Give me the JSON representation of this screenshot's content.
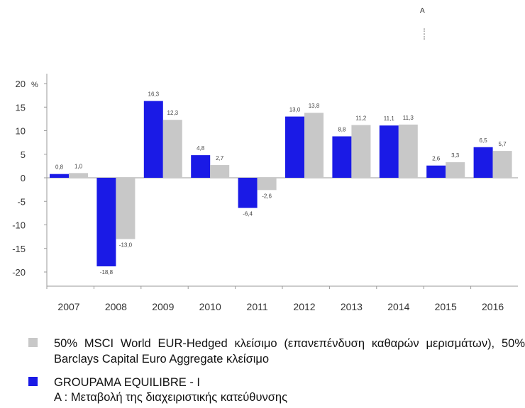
{
  "chart_data": {
    "type": "bar",
    "unit_label": "%",
    "categories": [
      "2007",
      "2008",
      "2009",
      "2010",
      "2011",
      "2012",
      "2013",
      "2014",
      "2015",
      "2016"
    ],
    "y_ticks": [
      "20",
      "15",
      "10",
      "5",
      "0",
      "-5",
      "-10",
      "-15",
      "-20"
    ],
    "ylim": [
      -22,
      22
    ],
    "series": [
      {
        "name": "GROUPAMA EQUILIBRE  - I",
        "color": "#1a1ae6",
        "values": [
          0.8,
          -18.8,
          16.3,
          4.8,
          -6.4,
          13.0,
          8.8,
          11.1,
          2.6,
          6.5
        ],
        "labels": [
          "0,8",
          "-18,8",
          "16,3",
          "4,8",
          "-6,4",
          "13,0",
          "8,8",
          "11,1",
          "2,6",
          "6,5"
        ]
      },
      {
        "name": "50% MSCI World EUR-Hedged κλείσιμο (επανεπένδυση καθαρών μερισμάτων), 50% Barclays Capital Euro Aggregate κλείσιμο",
        "color": "#c8c8c8",
        "values": [
          1.0,
          -13.0,
          12.3,
          2.7,
          -2.6,
          13.8,
          11.2,
          11.3,
          3.3,
          5.7
        ],
        "labels": [
          "1,0",
          "-13,0",
          "12,3",
          "2,7",
          "-2,6",
          "13,8",
          "11,2",
          "11,3",
          "3,3",
          "5,7"
        ]
      }
    ],
    "legend_position": "bottom",
    "grid": false
  },
  "annotation_marker": "A",
  "legend": {
    "benchmark": "50% MSCI World EUR-Hedged κλείσιμο (επανεπένδυση καθαρών μερισμάτων), 50% Barclays Capital Euro Aggregate κλείσιμο",
    "fund": "GROUPAMA EQUILIBRE  - I",
    "benchmark_color": "#c8c8c8",
    "fund_color": "#1a1ae6"
  },
  "note": "A : Μεταβολή της διαχειριστικής κατεύθυνσης"
}
